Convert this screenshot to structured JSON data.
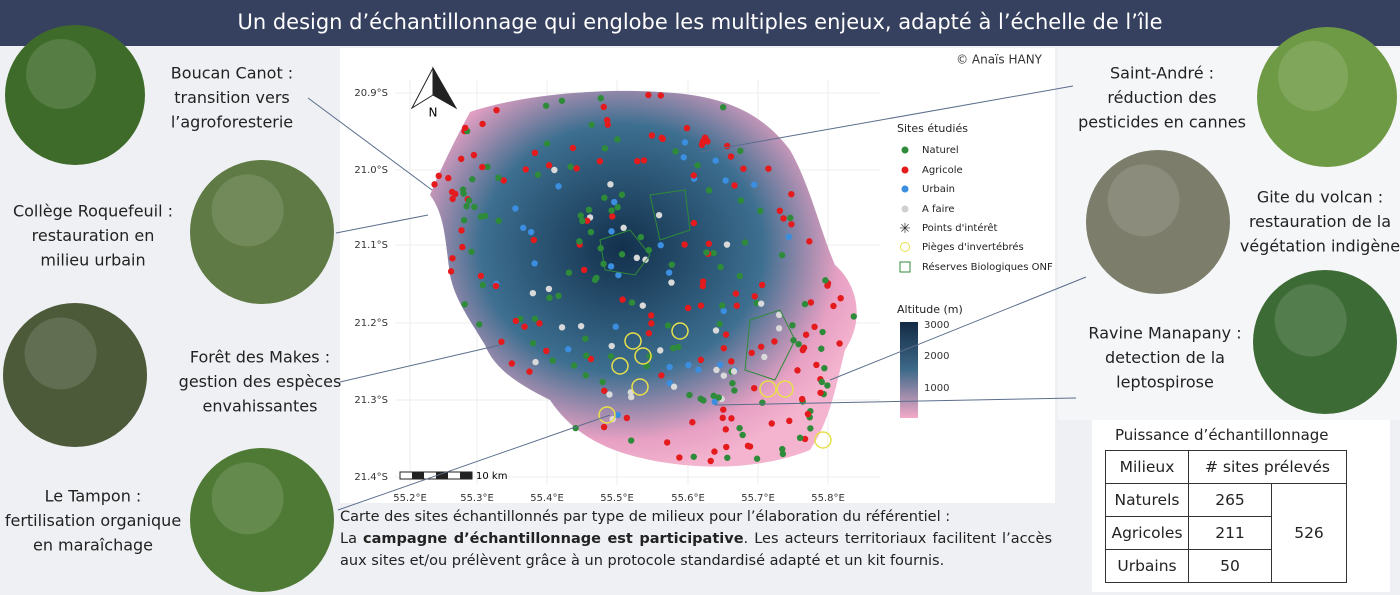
{
  "header": {
    "title": "Un design d’échantillonnage qui englobe les multiples enjeux, adapté à l’échelle de l’île"
  },
  "callouts": [
    {
      "lines": [
        "Boucan Canot :",
        "transition vers",
        "l’agroforesterie"
      ]
    },
    {
      "lines": [
        "Collège Roquefeuil :",
        "restauration  en",
        "milieu urbain"
      ]
    },
    {
      "lines": [
        "Forêt des Makes :",
        "gestion des espèces",
        "envahissantes"
      ]
    },
    {
      "lines": [
        "Le Tampon :",
        "fertilisation organique",
        "en maraîchage"
      ]
    },
    {
      "lines": [
        "Saint-André :",
        "réduction des",
        "pesticides en cannes"
      ]
    },
    {
      "lines": [
        "Gite du volcan :",
        "restauration de la",
        "végétation indigène"
      ]
    },
    {
      "lines": [
        "Ravine Manapany :",
        "detection de la",
        "leptospirose"
      ]
    }
  ],
  "map": {
    "credit": "© Anaïs HANY",
    "north": "N",
    "scale": "10 km",
    "lat_labels": [
      "20.9°S",
      "21.0°S",
      "21.1°S",
      "21.2°S",
      "21.3°S",
      "21.4°S"
    ],
    "lon_labels": [
      "55.2°E",
      "55.3°E",
      "55.4°E",
      "55.5°E",
      "55.6°E",
      "55.7°E",
      "55.8°E"
    ],
    "legend_title": "Sites étudiés",
    "legend_items": [
      "Naturel",
      "Agricole",
      "Urbain",
      "A faire",
      "Points d'intérêt",
      "Pièges d'invertébrés",
      "Réserves Biologiques ONF"
    ],
    "altitude_title": "Altitude (m)",
    "altitude_ticks": [
      "3000",
      "2000",
      "1000"
    ]
  },
  "caption": {
    "intro": "Carte des sites échantillonnés par type de milieux pour l’élaboration du référentiel :",
    "lead": "La ",
    "bold": "campagne d’échantillonnage est participative",
    "rest": ". Les acteurs territoriaux facilitent l’accès aux sites et/ou prélèvent grâce à un protocole standardisé adapté et un kit fournis."
  },
  "table": {
    "title": "Puissance d’échantillonnage",
    "headers": [
      "Milieux",
      "# sites prélevés"
    ],
    "rows": [
      [
        "Naturels",
        "265"
      ],
      [
        "Agricoles",
        "211"
      ],
      [
        "Urbains",
        "50"
      ]
    ],
    "total": "526"
  }
}
